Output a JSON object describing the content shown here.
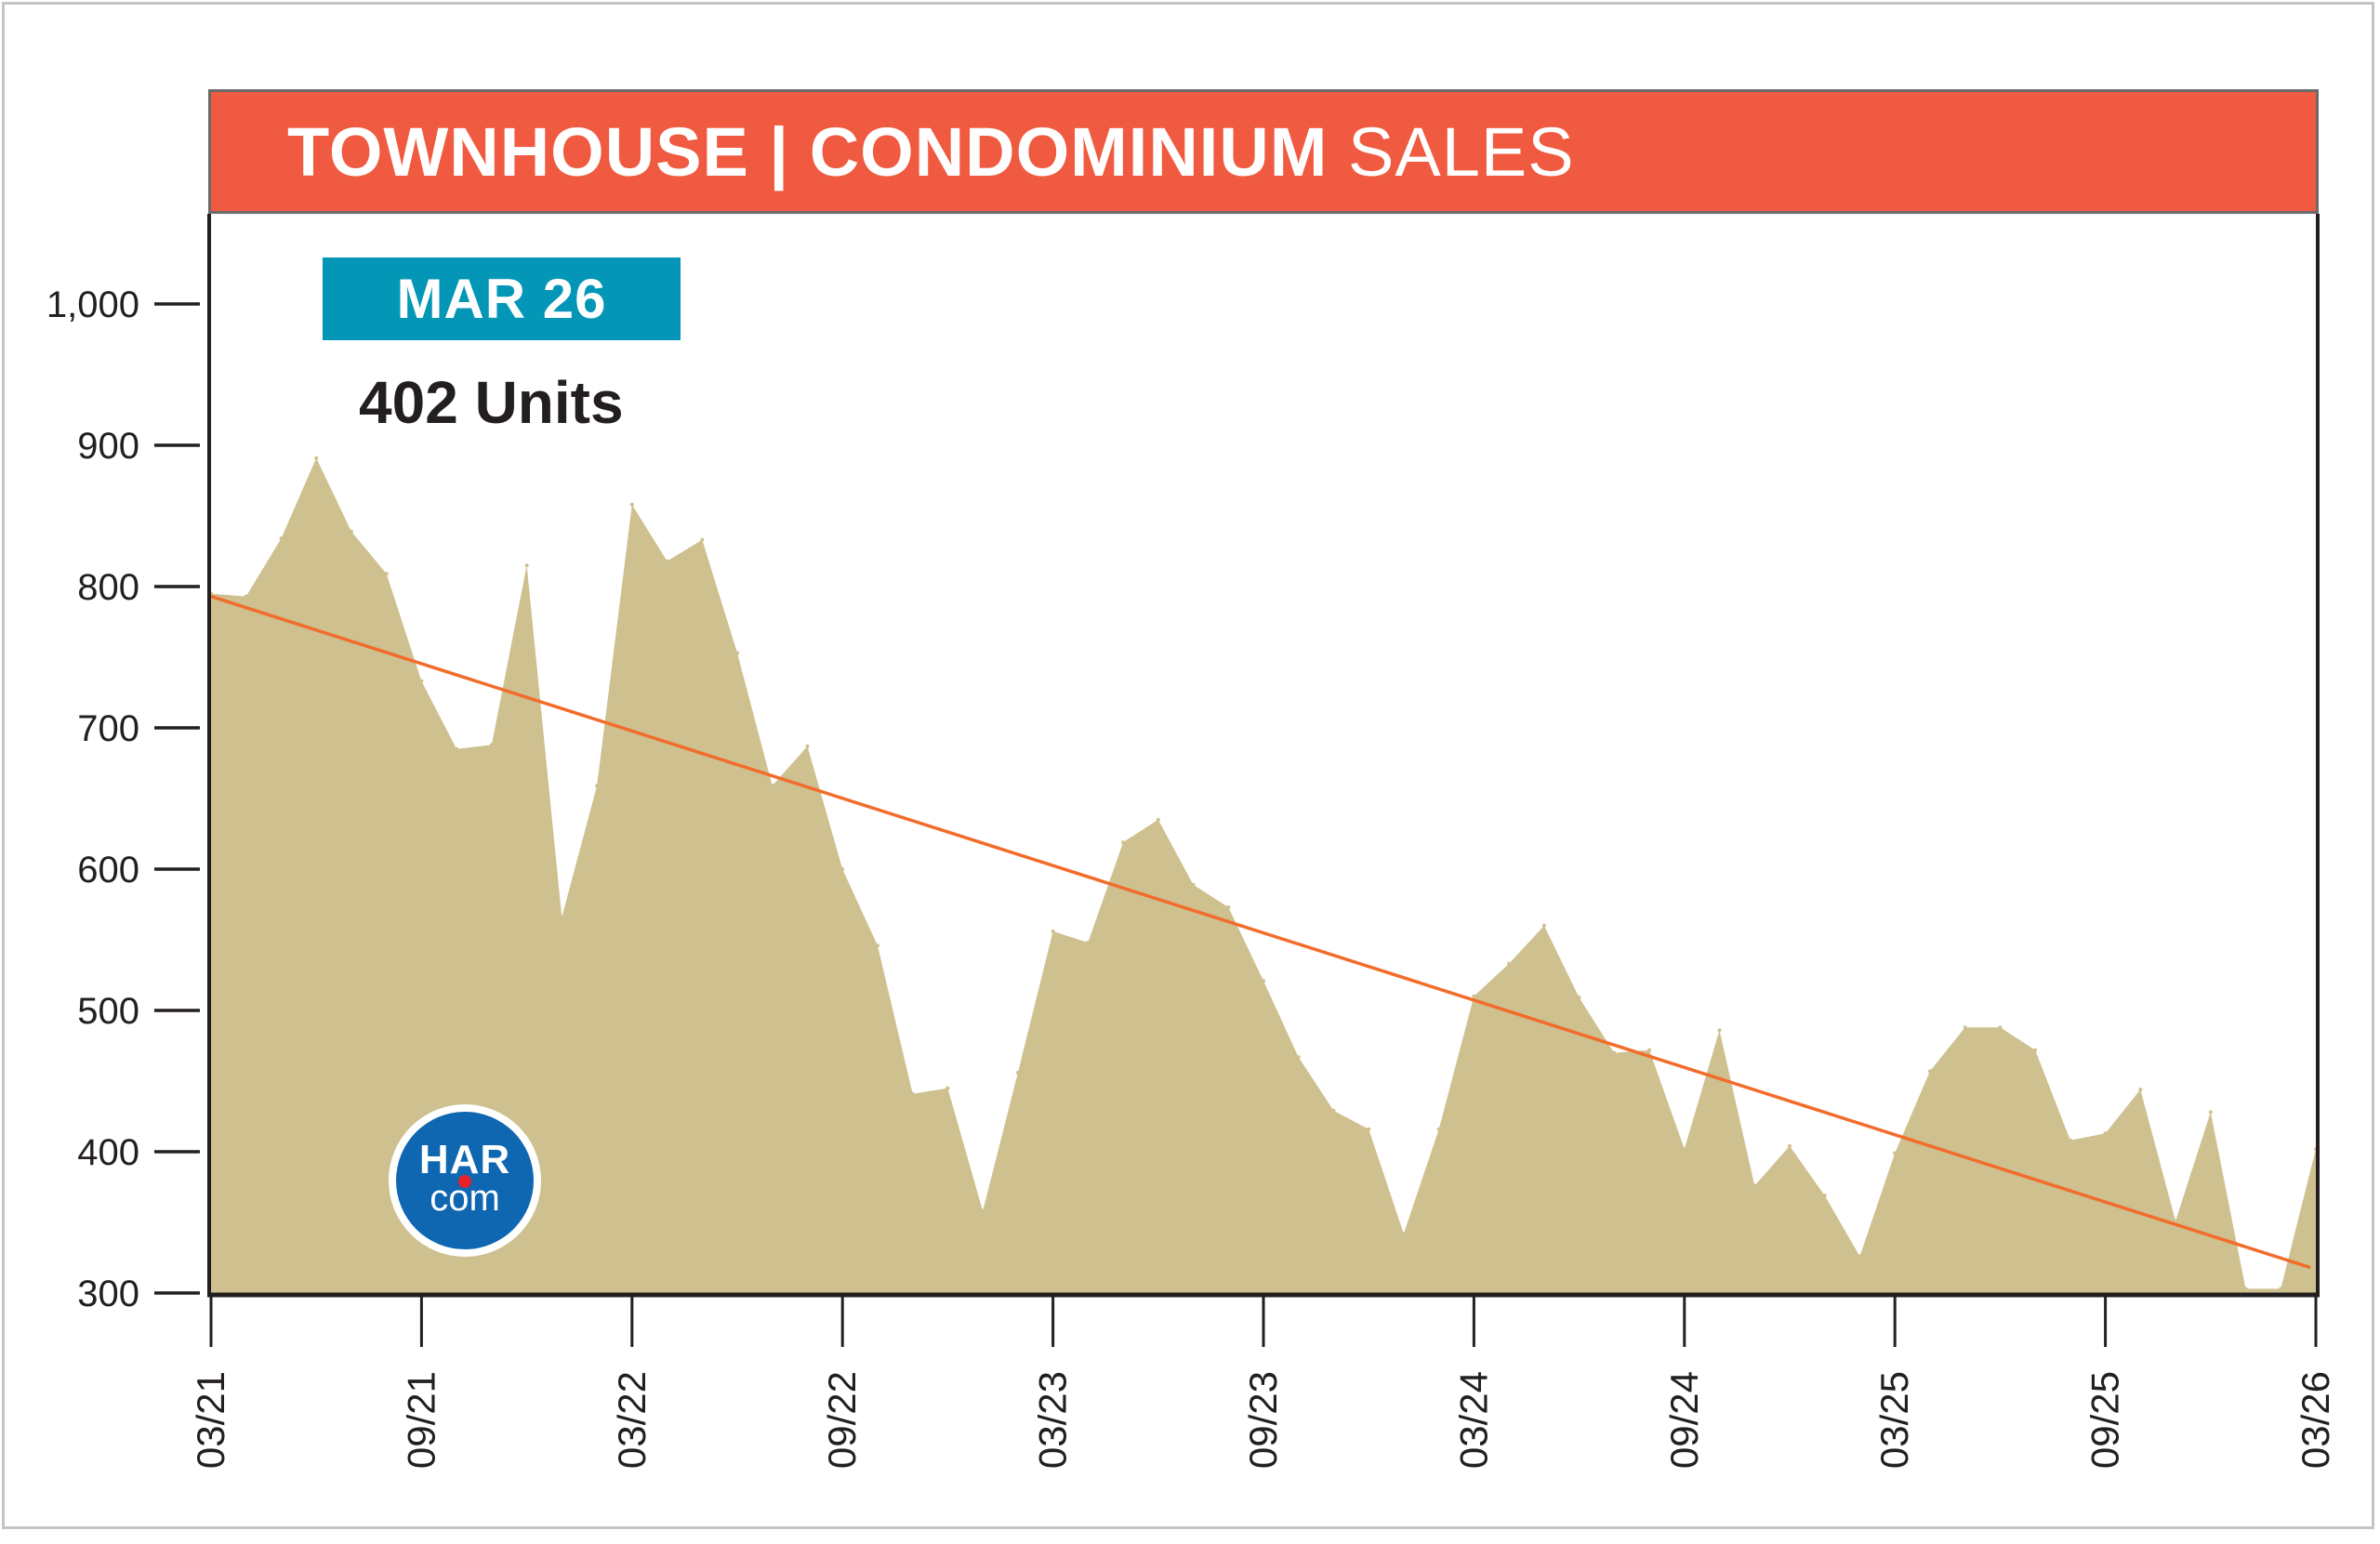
{
  "header": {
    "title_bold": "TOWNHOUSE | CONDOMINIUM",
    "title_light": "SALES"
  },
  "highlight": {
    "period_label": "MAR 26",
    "value_label": "402 Units"
  },
  "logo": {
    "top": "HAR",
    "bottom": "com"
  },
  "colors": {
    "title_bar": "#f05a40",
    "badge": "#0396b6",
    "area_fill": "#cec08f",
    "trend_line": "#f26c2b",
    "logo_blue": "#0f67b1",
    "logo_red": "#e8202a"
  },
  "chart_data": {
    "type": "area",
    "title": "TOWNHOUSE | CONDOMINIUM SALES",
    "xlabel": "",
    "ylabel": "",
    "ylim": [
      300,
      1050
    ],
    "grid": false,
    "yticks": [
      300,
      400,
      500,
      600,
      700,
      800,
      900,
      1000
    ],
    "ytick_labels": [
      "300",
      "400",
      "500",
      "600",
      "700",
      "800",
      "900",
      "1,000"
    ],
    "xtick_labels": [
      "03/21",
      "09/21",
      "03/22",
      "09/22",
      "03/23",
      "09/23",
      "03/24",
      "09/24",
      "03/25",
      "09/25",
      "03/26"
    ],
    "xtick_month_index": [
      0,
      6,
      12,
      18,
      24,
      30,
      36,
      42,
      48,
      54,
      60
    ],
    "x": [
      "03/21",
      "04/21",
      "05/21",
      "06/21",
      "07/21",
      "08/21",
      "09/21",
      "10/21",
      "11/21",
      "12/21",
      "01/22",
      "02/22",
      "03/22",
      "04/22",
      "05/22",
      "06/22",
      "07/22",
      "08/22",
      "09/22",
      "10/22",
      "11/22",
      "12/22",
      "01/23",
      "02/23",
      "03/23",
      "04/23",
      "05/23",
      "06/23",
      "07/23",
      "08/23",
      "09/23",
      "10/23",
      "11/23",
      "12/23",
      "01/24",
      "02/24",
      "03/24",
      "04/24",
      "05/24",
      "06/24",
      "07/24",
      "08/24",
      "09/24",
      "10/24",
      "11/24",
      "12/24",
      "01/25",
      "02/25",
      "03/25",
      "04/25",
      "05/25",
      "06/25",
      "07/25",
      "08/25",
      "09/25",
      "10/25",
      "11/25",
      "12/25",
      "01/26",
      "02/26",
      "03/26"
    ],
    "series": [
      {
        "name": "Townhouse/Condominium Sales",
        "values": [
          795,
          793,
          834,
          891,
          839,
          809,
          733,
          685,
          688,
          815,
          566,
          659,
          858,
          818,
          833,
          753,
          659,
          687,
          600,
          546,
          441,
          445,
          358,
          456,
          556,
          548,
          619,
          635,
          589,
          573,
          521,
          467,
          429,
          416,
          342,
          416,
          510,
          533,
          560,
          509,
          470,
          472,
          402,
          486,
          376,
          404,
          369,
          326,
          399,
          457,
          488,
          488,
          472,
          408,
          413,
          444,
          351,
          428,
          303,
          303,
          402
        ]
      }
    ],
    "trendline": {
      "name": "Linear trend",
      "start": 793,
      "end": 318
    },
    "annotations": [
      "MAR 26",
      "402 Units"
    ]
  }
}
